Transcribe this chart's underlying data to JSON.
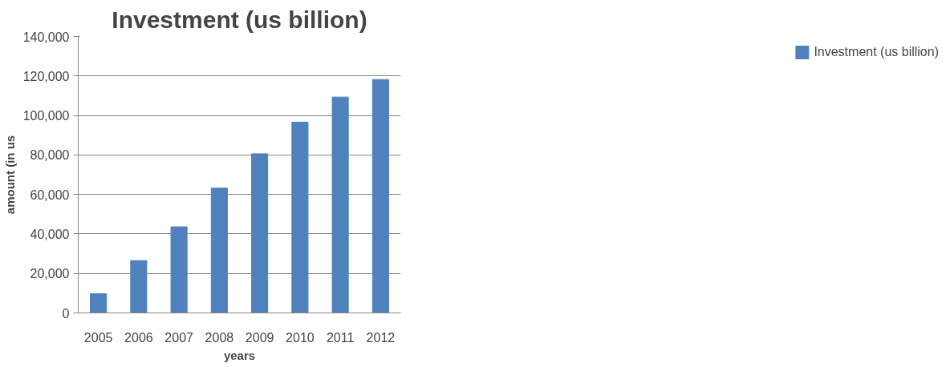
{
  "chart_data": {
    "type": "bar",
    "title": "Investment (us billion)",
    "xlabel": "years",
    "ylabel": "amount (in us",
    "categories": [
      "2005",
      "2006",
      "2007",
      "2008",
      "2009",
      "2010",
      "2011",
      "2012"
    ],
    "series": [
      {
        "name": "Investment (us billion)",
        "color": "#4f81bd",
        "values": [
          9700,
          26500,
          43600,
          63200,
          80600,
          96600,
          109300,
          118200
        ]
      }
    ],
    "ylim": [
      0,
      140000
    ],
    "yticks": [
      {
        "value": 0,
        "label": "0"
      },
      {
        "value": 20000,
        "label": "20,000"
      },
      {
        "value": 40000,
        "label": "40,000"
      },
      {
        "value": 60000,
        "label": "60,000"
      },
      {
        "value": 80000,
        "label": "80,000"
      },
      {
        "value": 100000,
        "label": "100,000"
      },
      {
        "value": 120000,
        "label": "120,000"
      },
      {
        "value": 140000,
        "label": "140,000"
      }
    ],
    "grid": "y",
    "legend": "right"
  }
}
